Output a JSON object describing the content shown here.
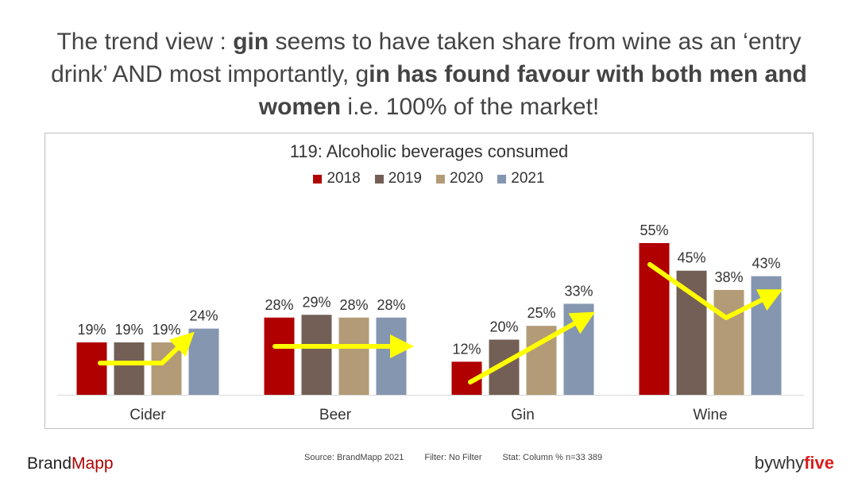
{
  "headline": {
    "part1": "The trend view : ",
    "part2": "gin",
    "part3": " seems to have taken share from wine as an ‘entry drink’ AND most importantly, g",
    "part4": "in has found favour with both men and women",
    "part5": " i.e. 100% of the market!"
  },
  "chart_data": {
    "type": "bar",
    "title": "119: Alcoholic beverages consumed",
    "categories": [
      "Cider",
      "Beer",
      "Gin",
      "Wine"
    ],
    "series": [
      {
        "name": "2018",
        "color": "#b00000",
        "values": [
          19,
          28,
          12,
          55
        ]
      },
      {
        "name": "2019",
        "color": "#735f55",
        "values": [
          19,
          29,
          20,
          45
        ]
      },
      {
        "name": "2020",
        "color": "#b29b76",
        "values": [
          19,
          28,
          25,
          38
        ]
      },
      {
        "name": "2021",
        "color": "#8596b0",
        "values": [
          24,
          28,
          33,
          43
        ]
      }
    ],
    "data_labels": [
      [
        "19%",
        "28%",
        "12%",
        "55%"
      ],
      [
        "19%",
        "29%",
        "20%",
        "45%"
      ],
      [
        "19%",
        "28%",
        "25%",
        "38%"
      ],
      [
        "24%",
        "28%",
        "33%",
        "43%"
      ]
    ],
    "ylim": [
      0,
      60
    ],
    "trend_arrow_color": "#ffff00",
    "grid": false,
    "legend_position": "top"
  },
  "footer": {
    "brand_part1": "Brand",
    "brand_part2": "Mapp",
    "source": "Source: BrandMapp 2021",
    "filter": "Filter: No Filter",
    "stat": "Stat: Column %  n=33  389",
    "logo_part1": "bywhy",
    "logo_part2": "five"
  }
}
